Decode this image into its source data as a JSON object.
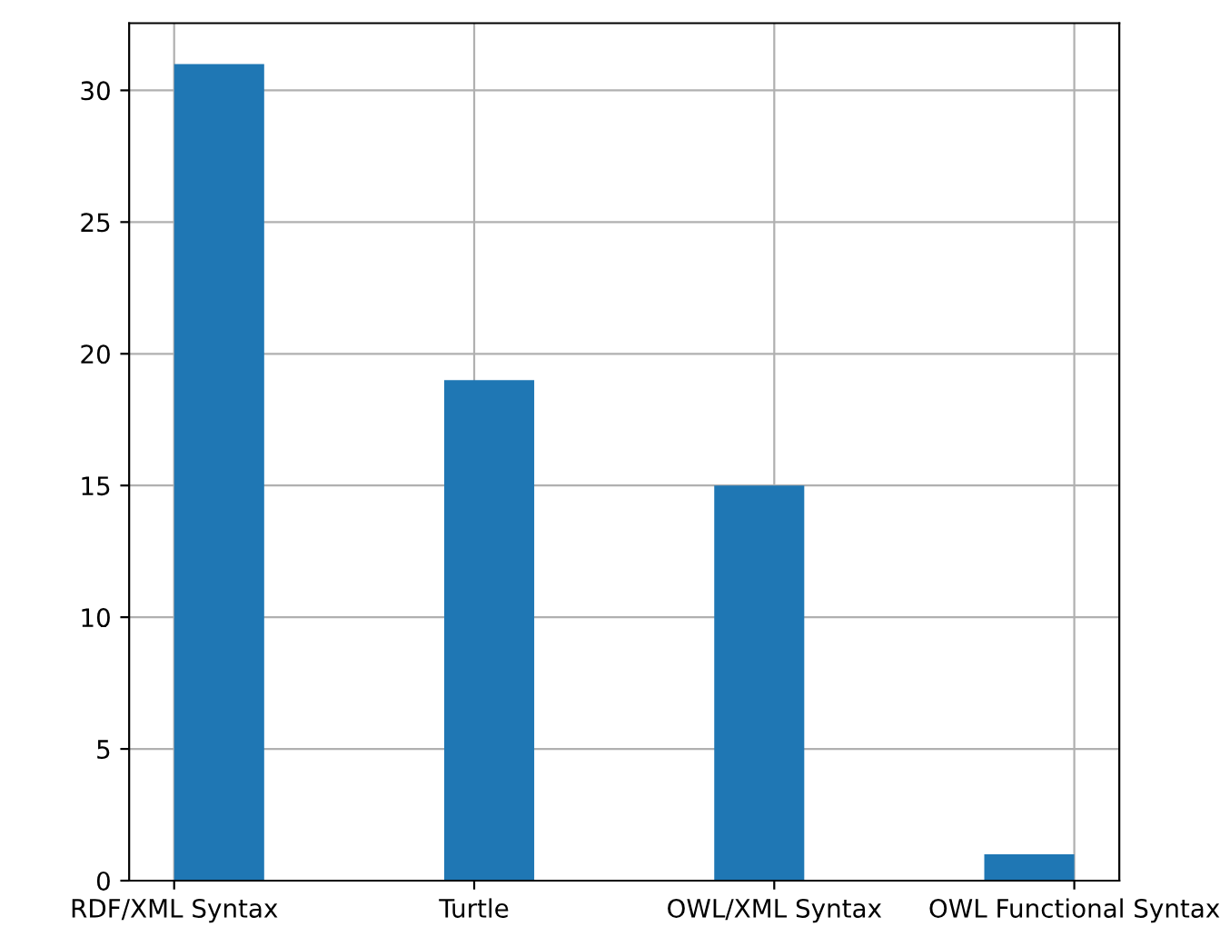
{
  "chart_data": {
    "type": "bar",
    "categories": [
      "RDF/XML Syntax",
      "Turtle",
      "OWL/XML Syntax",
      "OWL Functional Syntax"
    ],
    "values": [
      31,
      19,
      15,
      1
    ],
    "color": "#1f77b4",
    "ylim": [
      0,
      32.55
    ],
    "yticks": [
      0,
      5,
      10,
      15,
      20,
      25,
      30
    ],
    "grid": true
  }
}
